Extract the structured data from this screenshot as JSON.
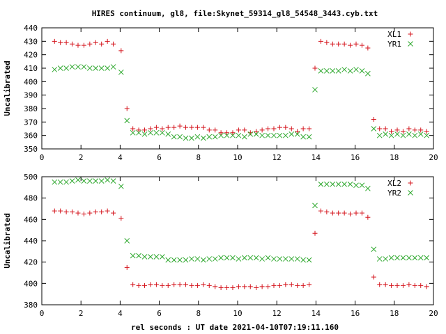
{
  "title": "HIRES continuum, gl8, file:Skynet_59314_gl8_54548_3443.cyb.txt",
  "xlabel": "rel seconds : UT date 2021-04-10T07:19:11.160",
  "colors": {
    "red": "#d4121a",
    "green": "#2fa82f"
  },
  "chart_data": [
    {
      "type": "scatter",
      "ylabel": "Uncalibrated",
      "xlim": [
        0,
        20
      ],
      "ylim": [
        350,
        440
      ],
      "xticks": [
        0,
        2,
        4,
        6,
        8,
        10,
        12,
        14,
        16,
        18,
        20
      ],
      "yticks": [
        350,
        360,
        370,
        380,
        390,
        400,
        410,
        420,
        430,
        440
      ],
      "legend_position": "top-right",
      "grid": false,
      "x": [
        0.65,
        0.95,
        1.25,
        1.55,
        1.85,
        2.15,
        2.45,
        2.75,
        3.05,
        3.35,
        3.65,
        4.05,
        4.35,
        4.65,
        4.95,
        5.25,
        5.55,
        5.85,
        6.15,
        6.45,
        6.75,
        7.05,
        7.35,
        7.65,
        7.95,
        8.25,
        8.55,
        8.85,
        9.15,
        9.45,
        9.75,
        10.05,
        10.35,
        10.65,
        10.95,
        11.25,
        11.55,
        11.85,
        12.15,
        12.45,
        12.75,
        13.05,
        13.35,
        13.65,
        13.95,
        14.25,
        14.55,
        14.85,
        15.15,
        15.45,
        15.75,
        16.05,
        16.35,
        16.65,
        16.95,
        17.25,
        17.55,
        17.85,
        18.15,
        18.45,
        18.75,
        19.05,
        19.35,
        19.65
      ],
      "series": [
        {
          "name": "XL1",
          "marker": "plus",
          "color": "#d4121a",
          "values": [
            430,
            429,
            429,
            428,
            427,
            427,
            428,
            429,
            428,
            430,
            428,
            423,
            380,
            365,
            364,
            364,
            365,
            366,
            365,
            366,
            366,
            367,
            366,
            366,
            366,
            366,
            364,
            364,
            362,
            362,
            362,
            364,
            364,
            362,
            363,
            364,
            365,
            365,
            366,
            366,
            365,
            363,
            365,
            365,
            410,
            430,
            429,
            428,
            428,
            428,
            427,
            428,
            427,
            425,
            372,
            365,
            365,
            363,
            364,
            363,
            365,
            364,
            364,
            363
          ]
        },
        {
          "name": "YR1",
          "marker": "cross",
          "color": "#2fa82f",
          "values": [
            409,
            410,
            410,
            411,
            411,
            411,
            410,
            410,
            410,
            410,
            411,
            407,
            371,
            362,
            362,
            361,
            362,
            362,
            362,
            361,
            359,
            359,
            358,
            358,
            359,
            358,
            359,
            359,
            360,
            360,
            360,
            360,
            359,
            361,
            361,
            360,
            360,
            360,
            360,
            360,
            361,
            361,
            359,
            359,
            394,
            408,
            408,
            408,
            408,
            409,
            408,
            409,
            408,
            406,
            365,
            360,
            361,
            360,
            361,
            360,
            361,
            360,
            361,
            360
          ]
        }
      ]
    },
    {
      "type": "scatter",
      "ylabel": "Uncalibrated",
      "xlim": [
        0,
        20
      ],
      "ylim": [
        380,
        500
      ],
      "xticks": [
        0,
        2,
        4,
        6,
        8,
        10,
        12,
        14,
        16,
        18,
        20
      ],
      "yticks": [
        380,
        400,
        420,
        440,
        460,
        480,
        500
      ],
      "legend_position": "top-right",
      "grid": false,
      "x": [
        0.65,
        0.95,
        1.25,
        1.55,
        1.85,
        2.15,
        2.45,
        2.75,
        3.05,
        3.35,
        3.65,
        4.05,
        4.35,
        4.65,
        4.95,
        5.25,
        5.55,
        5.85,
        6.15,
        6.45,
        6.75,
        7.05,
        7.35,
        7.65,
        7.95,
        8.25,
        8.55,
        8.85,
        9.15,
        9.45,
        9.75,
        10.05,
        10.35,
        10.65,
        10.95,
        11.25,
        11.55,
        11.85,
        12.15,
        12.45,
        12.75,
        13.05,
        13.35,
        13.65,
        13.95,
        14.25,
        14.55,
        14.85,
        15.15,
        15.45,
        15.75,
        16.05,
        16.35,
        16.65,
        16.95,
        17.25,
        17.55,
        17.85,
        18.15,
        18.45,
        18.75,
        19.05,
        19.35,
        19.65
      ],
      "series": [
        {
          "name": "XL2",
          "marker": "plus",
          "color": "#d4121a",
          "values": [
            468,
            468,
            467,
            467,
            466,
            465,
            466,
            467,
            467,
            468,
            466,
            461,
            415,
            399,
            398,
            398,
            399,
            399,
            398,
            398,
            399,
            399,
            399,
            398,
            398,
            399,
            398,
            397,
            396,
            396,
            396,
            397,
            397,
            397,
            396,
            397,
            397,
            398,
            398,
            399,
            399,
            398,
            398,
            399,
            447,
            468,
            467,
            466,
            466,
            466,
            465,
            466,
            466,
            462,
            406,
            399,
            399,
            398,
            398,
            398,
            399,
            398,
            398,
            397
          ]
        },
        {
          "name": "YR2",
          "marker": "cross",
          "color": "#2fa82f",
          "values": [
            495,
            495,
            495,
            496,
            497,
            496,
            496,
            496,
            496,
            497,
            496,
            491,
            440,
            426,
            426,
            425,
            425,
            425,
            425,
            422,
            422,
            422,
            422,
            423,
            423,
            422,
            423,
            423,
            424,
            424,
            424,
            423,
            424,
            424,
            424,
            423,
            424,
            423,
            423,
            423,
            423,
            423,
            422,
            422,
            473,
            493,
            493,
            493,
            493,
            493,
            493,
            492,
            492,
            489,
            432,
            423,
            423,
            424,
            424,
            424,
            424,
            424,
            424,
            424
          ]
        }
      ]
    }
  ]
}
